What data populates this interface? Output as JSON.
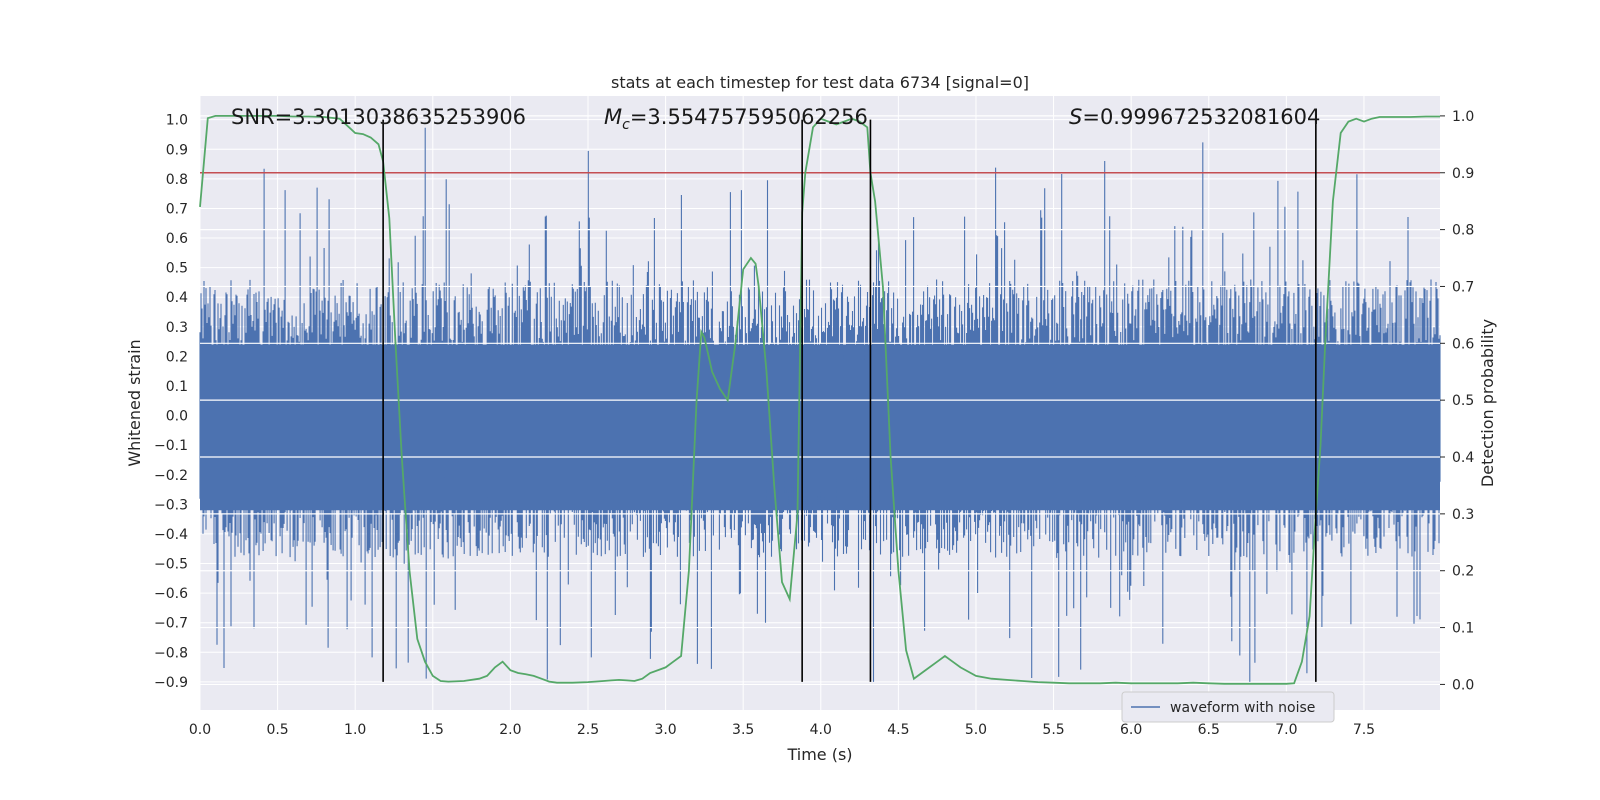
{
  "chart_data": {
    "type": "line",
    "title": "stats at each timestep for test data 6734 [signal=0]",
    "xlabel": "Time (s)",
    "ylabel_left": "Whitened strain",
    "ylabel_right": "Detection probability",
    "xlim": [
      0.0,
      7.99
    ],
    "ylim_left": [
      -0.995,
      1.08
    ],
    "ylim_right": [
      -0.045,
      1.035
    ],
    "x_ticks": [
      "0.0",
      "0.5",
      "1.0",
      "1.5",
      "2.0",
      "2.5",
      "3.0",
      "3.5",
      "4.0",
      "4.5",
      "5.0",
      "5.5",
      "6.0",
      "6.5",
      "7.0",
      "7.5"
    ],
    "y_left_ticks": [
      "1.0",
      "0.9",
      "0.8",
      "0.7",
      "0.6",
      "0.5",
      "0.4",
      "0.3",
      "0.2",
      "0.1",
      "0.0",
      "−0.1",
      "−0.2",
      "−0.3",
      "−0.4",
      "−0.5",
      "−0.6",
      "−0.7",
      "−0.8",
      "−0.9"
    ],
    "y_right_ticks": [
      "0.0",
      "0.1",
      "0.2",
      "0.3",
      "0.4",
      "0.5",
      "0.6",
      "0.7",
      "0.8",
      "0.9",
      "1.0"
    ],
    "grid": true,
    "legend_position": "lower-right",
    "colors": {
      "strain": "#4c72b0",
      "probability": "#55a868",
      "threshold": "#c44e52",
      "boundaries": "#000000",
      "axes_bg": "#eaeaf2",
      "grid": "#ffffff"
    },
    "series": [
      {
        "name": "waveform with noise",
        "axis": "left",
        "envelope_note": "dense noise trace",
        "x_range": [
          0.0,
          7.99
        ]
      },
      {
        "axis": "right",
        "x": [
          0.0,
          0.05,
          0.1,
          0.2,
          0.3,
          0.4,
          0.5,
          0.6,
          0.7,
          0.8,
          0.9,
          1.0,
          1.05,
          1.1,
          1.15,
          1.18,
          1.22,
          1.26,
          1.3,
          1.35,
          1.4,
          1.45,
          1.5,
          1.55,
          1.6,
          1.7,
          1.8,
          1.85,
          1.9,
          1.95,
          2.0,
          2.05,
          2.1,
          2.15,
          2.2,
          2.25,
          2.3,
          2.4,
          2.5,
          2.6,
          2.65,
          2.7,
          2.75,
          2.8,
          2.85,
          2.9,
          3.0,
          3.05,
          3.1,
          3.15,
          3.2,
          3.23,
          3.25,
          3.3,
          3.35,
          3.4,
          3.45,
          3.5,
          3.55,
          3.58,
          3.6,
          3.65,
          3.7,
          3.75,
          3.8,
          3.85,
          3.88,
          3.9,
          3.95,
          4.0,
          4.05,
          4.1,
          4.15,
          4.2,
          4.25,
          4.3,
          4.32,
          4.35,
          4.4,
          4.45,
          4.5,
          4.55,
          4.6,
          4.65,
          4.7,
          4.75,
          4.8,
          4.85,
          4.9,
          5.0,
          5.1,
          5.2,
          5.3,
          5.4,
          5.5,
          5.6,
          5.7,
          5.8,
          5.9,
          6.0,
          6.1,
          6.2,
          6.3,
          6.4,
          6.5,
          6.6,
          6.7,
          6.8,
          6.9,
          7.0,
          7.05,
          7.1,
          7.15,
          7.19,
          7.22,
          7.25,
          7.3,
          7.35,
          7.4,
          7.45,
          7.5,
          7.55,
          7.6,
          7.7,
          7.8,
          7.9,
          7.99
        ],
        "y": [
          0.84,
          0.996,
          1.0,
          1.0,
          1.0,
          1.0,
          1.0,
          0.999,
          0.999,
          0.998,
          0.995,
          0.97,
          0.968,
          0.962,
          0.95,
          0.92,
          0.82,
          0.6,
          0.4,
          0.2,
          0.08,
          0.04,
          0.015,
          0.006,
          0.005,
          0.006,
          0.01,
          0.015,
          0.03,
          0.04,
          0.025,
          0.02,
          0.018,
          0.015,
          0.01,
          0.005,
          0.003,
          0.003,
          0.004,
          0.006,
          0.007,
          0.008,
          0.007,
          0.006,
          0.01,
          0.02,
          0.03,
          0.04,
          0.05,
          0.2,
          0.5,
          0.62,
          0.61,
          0.55,
          0.52,
          0.5,
          0.6,
          0.73,
          0.75,
          0.74,
          0.7,
          0.55,
          0.35,
          0.18,
          0.15,
          0.3,
          0.83,
          0.9,
          0.98,
          0.995,
          0.99,
          0.985,
          0.99,
          0.995,
          0.99,
          0.98,
          0.9,
          0.85,
          0.7,
          0.4,
          0.2,
          0.06,
          0.01,
          0.02,
          0.03,
          0.04,
          0.05,
          0.04,
          0.03,
          0.015,
          0.01,
          0.008,
          0.006,
          0.004,
          0.003,
          0.002,
          0.002,
          0.002,
          0.003,
          0.002,
          0.002,
          0.002,
          0.002,
          0.003,
          0.002,
          0.001,
          0.001,
          0.001,
          0.001,
          0.001,
          0.002,
          0.04,
          0.12,
          0.3,
          0.42,
          0.6,
          0.85,
          0.97,
          0.99,
          0.995,
          0.99,
          0.995,
          0.998,
          0.998,
          0.998,
          0.999,
          0.999
        ]
      },
      {
        "axis": "right",
        "type": "hline",
        "y": 0.9
      },
      {
        "axis": "left",
        "type": "vlines",
        "x": [
          1.18,
          3.88,
          4.32,
          7.19
        ],
        "y_range": [
          -0.9,
          1.0
        ]
      }
    ],
    "annotations": [
      {
        "text": "SNR=3.3013038635253906"
      },
      {
        "text_prefix": "M",
        "text_subscript": "c",
        "text": "=3.554757595062256"
      },
      {
        "text_prefix": "S",
        "text": "=0.999672532081604"
      }
    ]
  }
}
